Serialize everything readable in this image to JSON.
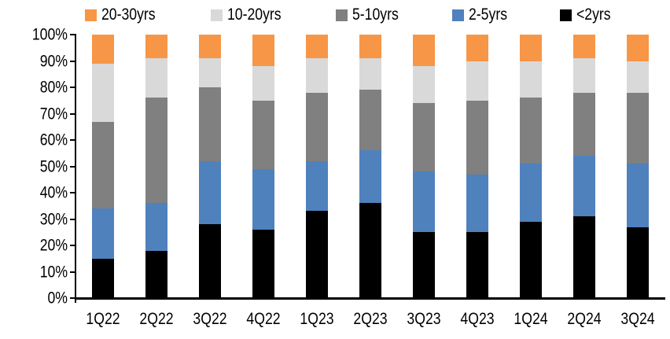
{
  "chart_data": {
    "type": "bar",
    "stacked": true,
    "percent_stacked": true,
    "unit": "%",
    "title": "",
    "xlabel": "",
    "ylabel": "",
    "grid": false,
    "categories": [
      "1Q22",
      "2Q22",
      "3Q22",
      "4Q22",
      "1Q23",
      "2Q23",
      "3Q23",
      "4Q23",
      "1Q24",
      "2Q24",
      "3Q24"
    ],
    "series": [
      {
        "name": "<2yrs",
        "color": "#000000",
        "values": [
          15,
          18,
          28,
          26,
          33,
          36,
          25,
          25,
          29,
          31,
          27
        ]
      },
      {
        "name": "2-5yrs",
        "color": "#4F81BD",
        "values": [
          19,
          18,
          24,
          23,
          19,
          20,
          23,
          22,
          22,
          23,
          24
        ]
      },
      {
        "name": "5-10yrs",
        "color": "#808080",
        "values": [
          33,
          40,
          28,
          26,
          26,
          23,
          26,
          28,
          25,
          24,
          27
        ]
      },
      {
        "name": "10-20yrs",
        "color": "#D9D9D9",
        "values": [
          22,
          15,
          11,
          13,
          13,
          12,
          14,
          15,
          14,
          13,
          12
        ]
      },
      {
        "name": "20-30yrs",
        "color": "#F79646",
        "values": [
          11,
          9,
          9,
          12,
          9,
          9,
          12,
          10,
          10,
          9,
          10
        ]
      }
    ],
    "legend": {
      "position": "top",
      "order": [
        "20-30yrs",
        "10-20yrs",
        "5-10yrs",
        "2-5yrs",
        "<2yrs"
      ]
    },
    "y_axis": {
      "min": 0,
      "max": 100,
      "step": 10,
      "tick_labels": [
        "0%",
        "10%",
        "20%",
        "30%",
        "40%",
        "50%",
        "60%",
        "70%",
        "80%",
        "90%",
        "100%"
      ]
    }
  }
}
